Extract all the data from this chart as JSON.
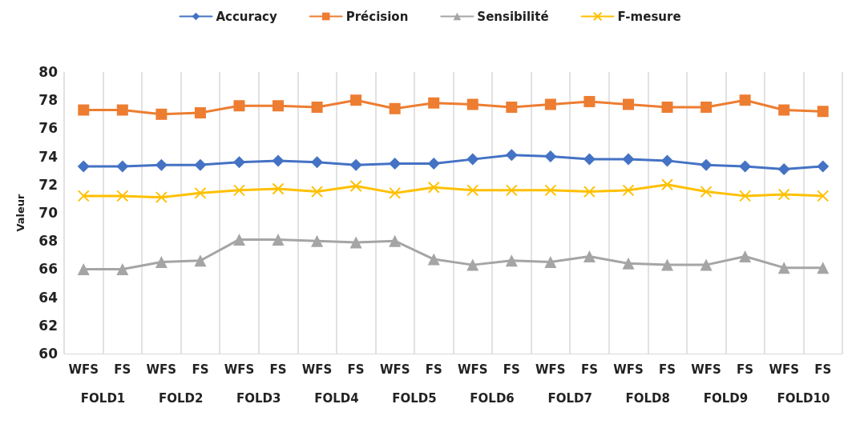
{
  "chart_data": {
    "type": "line",
    "ylabel": "Valeur",
    "categories": [
      "WFS",
      "FS",
      "WFS",
      "FS",
      "WFS",
      "FS",
      "WFS",
      "FS",
      "WFS",
      "FS",
      "WFS",
      "FS",
      "WFS",
      "FS",
      "WFS",
      "FS",
      "WFS",
      "FS",
      "WFS",
      "FS"
    ],
    "annotations": [
      "FOLD1",
      "FOLD2",
      "FOLD3",
      "FOLD4",
      "FOLD5",
      "FOLD6",
      "FOLD7",
      "FOLD8",
      "FOLD9",
      "FOLD10"
    ],
    "series": [
      {
        "name": "Accuracy",
        "color": "#4472c4",
        "marker": "diamond",
        "values": [
          73.3,
          73.3,
          73.4,
          73.4,
          73.6,
          73.7,
          73.6,
          73.4,
          73.5,
          73.5,
          73.8,
          74.1,
          74.0,
          73.8,
          73.8,
          73.7,
          73.4,
          73.3,
          73.1,
          73.3
        ]
      },
      {
        "name": "Précision",
        "color": "#ed7d31",
        "marker": "square",
        "values": [
          77.3,
          77.3,
          77.0,
          77.1,
          77.6,
          77.6,
          77.5,
          78.0,
          77.4,
          77.8,
          77.7,
          77.5,
          77.7,
          77.9,
          77.7,
          77.5,
          77.5,
          78.0,
          77.3,
          77.2
        ]
      },
      {
        "name": "Sensibilité",
        "color": "#a5a5a5",
        "marker": "triangle",
        "values": [
          66.0,
          66.0,
          66.5,
          66.6,
          68.1,
          68.1,
          68.0,
          67.9,
          68.0,
          66.7,
          66.3,
          66.6,
          66.5,
          66.9,
          66.4,
          66.3,
          66.3,
          66.9,
          66.1,
          66.1
        ]
      },
      {
        "name": "F-mesure",
        "color": "#ffc000",
        "marker": "cross",
        "values": [
          71.2,
          71.2,
          71.1,
          71.4,
          71.6,
          71.7,
          71.5,
          71.9,
          71.4,
          71.8,
          71.6,
          71.6,
          71.6,
          71.5,
          71.6,
          72.0,
          71.5,
          71.2,
          71.3,
          71.2
        ]
      }
    ],
    "ylim": [
      60,
      80
    ],
    "yticks": [
      60,
      62,
      64,
      66,
      68,
      70,
      72,
      74,
      76,
      78,
      80
    ],
    "grid": "x",
    "legend": "top",
    "line_style": "solid"
  }
}
